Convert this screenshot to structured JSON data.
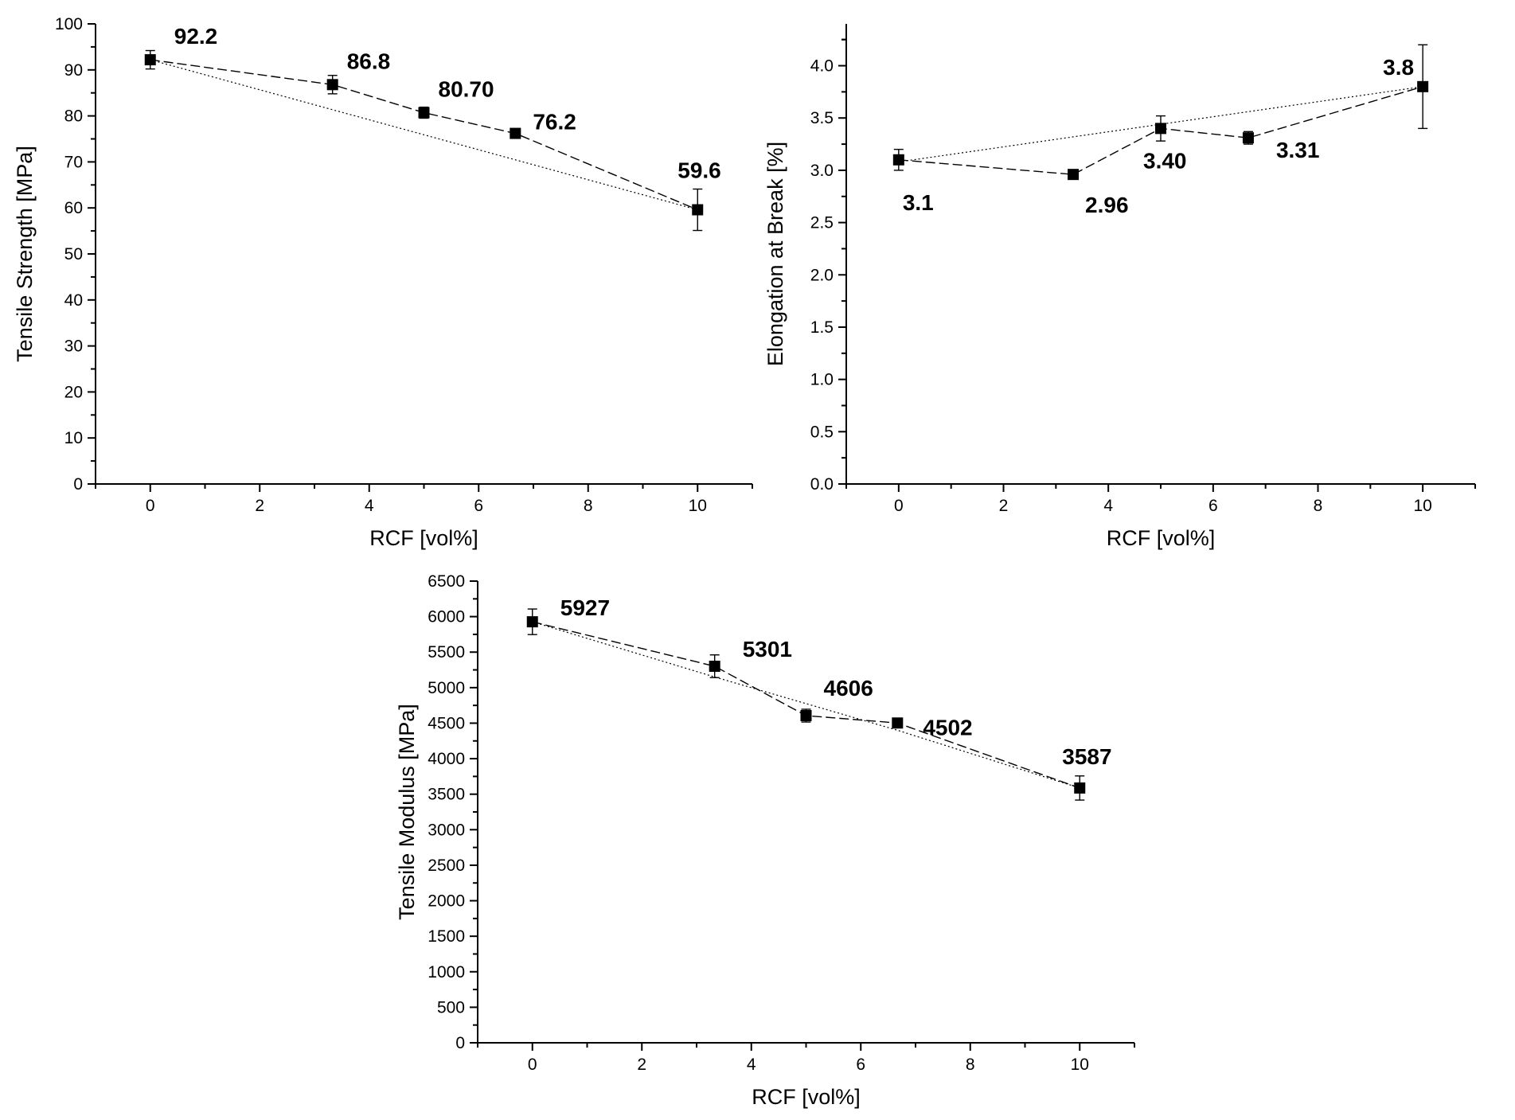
{
  "chart_data": [
    {
      "type": "line",
      "title": "",
      "xlabel": "RCF [vol%]",
      "ylabel": "Tensile Strength [MPa]",
      "xlim": [
        -1,
        11
      ],
      "ylim": [
        0,
        100
      ],
      "xticks": [
        0,
        2,
        4,
        6,
        8,
        10
      ],
      "yticks": [
        0,
        10,
        20,
        30,
        40,
        50,
        60,
        70,
        80,
        90,
        100
      ],
      "tick_decimals": 0,
      "series": [
        {
          "name": "Tensile Strength",
          "x": [
            0,
            3.33,
            5,
            6.67,
            10
          ],
          "y": [
            92.2,
            86.8,
            80.7,
            76.2,
            59.6
          ],
          "err": [
            2.0,
            2.0,
            1.2,
            0.8,
            4.5
          ],
          "labels": [
            "92.2",
            "86.8",
            "80.70",
            "76.2",
            "59.6"
          ]
        }
      ],
      "trend": {
        "x": [
          0,
          10
        ],
        "y": [
          92.2,
          59.6
        ]
      },
      "grid": false
    },
    {
      "type": "line",
      "title": "",
      "xlabel": "RCF [vol%]",
      "ylabel": "Elongation at Break [%]",
      "xlim": [
        -1,
        11
      ],
      "ylim": [
        0,
        4.4
      ],
      "xticks": [
        0,
        2,
        4,
        6,
        8,
        10
      ],
      "yticks": [
        0,
        0.5,
        1.0,
        1.5,
        2.0,
        2.5,
        3.0,
        3.5,
        4.0
      ],
      "tick_decimals": 1,
      "series": [
        {
          "name": "Elongation at Break",
          "x": [
            0,
            3.33,
            5,
            6.67,
            10
          ],
          "y": [
            3.1,
            2.96,
            3.4,
            3.31,
            3.8
          ],
          "err": [
            0.1,
            0.02,
            0.12,
            0.06,
            0.4
          ],
          "labels": [
            "3.1",
            "2.96",
            "3.40",
            "3.31",
            "3.8"
          ]
        }
      ],
      "trend": {
        "x": [
          0,
          10
        ],
        "y": [
          3.08,
          3.8
        ]
      },
      "grid": false
    },
    {
      "type": "line",
      "title": "",
      "xlabel": "RCF [vol%]",
      "ylabel": "Tensile Modulus [MPa]",
      "xlim": [
        -1,
        11
      ],
      "ylim": [
        0,
        6500
      ],
      "xticks": [
        0,
        2,
        4,
        6,
        8,
        10
      ],
      "yticks": [
        0,
        500,
        1000,
        1500,
        2000,
        2500,
        3000,
        3500,
        4000,
        4500,
        5000,
        5500,
        6000,
        6500
      ],
      "tick_decimals": 0,
      "series": [
        {
          "name": "Tensile Modulus",
          "x": [
            0,
            3.33,
            5,
            6.67,
            10
          ],
          "y": [
            5927,
            5301,
            4606,
            4502,
            3587
          ],
          "err": [
            180,
            160,
            90,
            50,
            170
          ],
          "labels": [
            "5927",
            "5301",
            "4606",
            "4502",
            "3587"
          ]
        }
      ],
      "trend": {
        "x": [
          0,
          10
        ],
        "y": [
          5927,
          3587
        ]
      },
      "grid": false
    }
  ]
}
